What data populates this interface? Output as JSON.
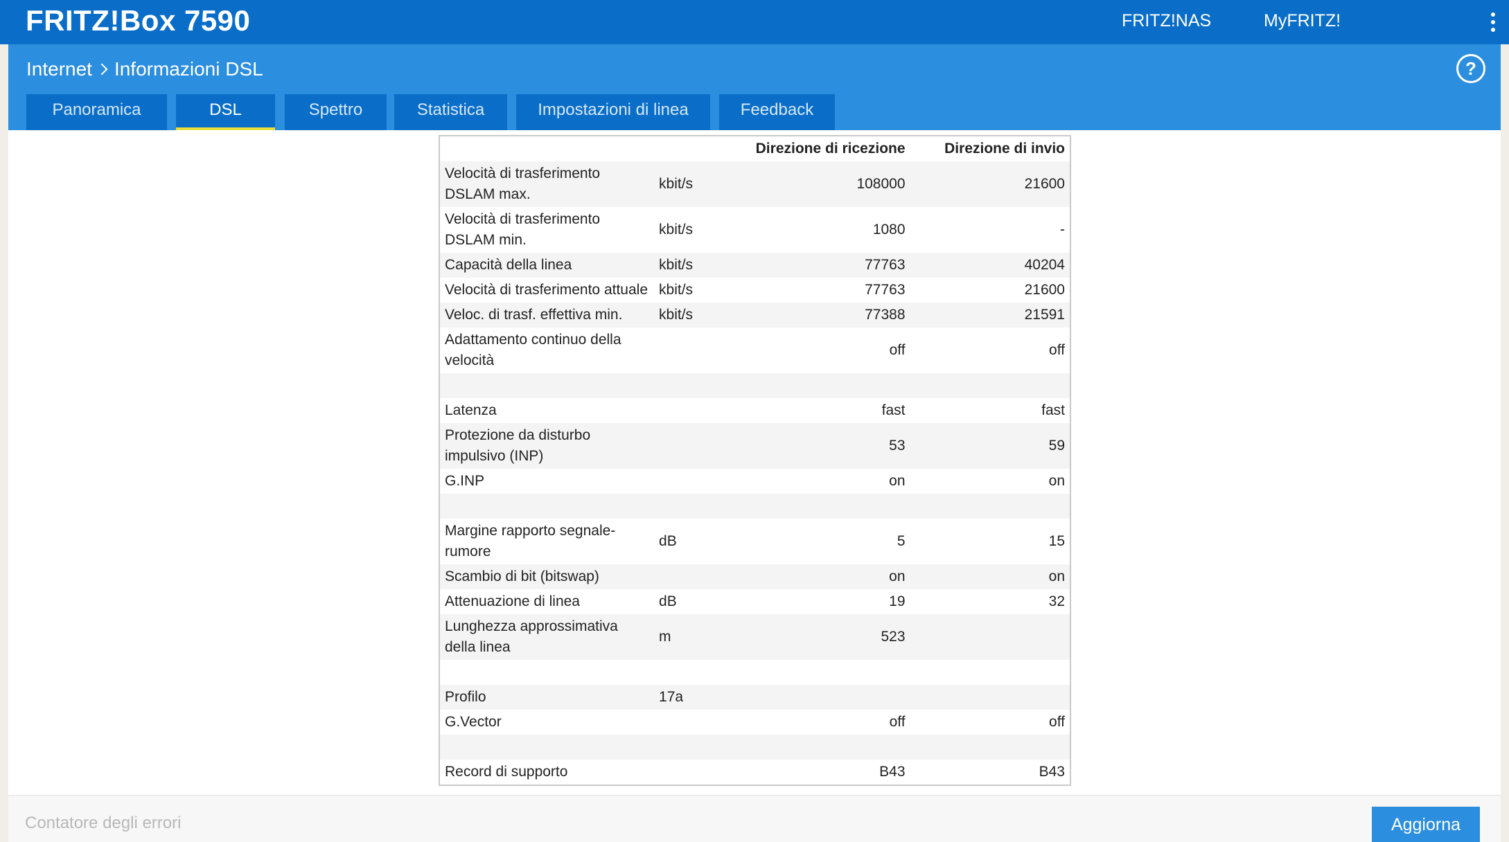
{
  "header": {
    "brand": "FRITZ!Box 7590",
    "links": [
      "FRITZ!NAS",
      "MyFRITZ!"
    ],
    "menu_icon": "vertical-dots-icon"
  },
  "breadcrumb": {
    "parent": "Internet",
    "current": "Informazioni DSL",
    "help_icon": "help-icon",
    "help_symbol": "?"
  },
  "tabs": [
    {
      "label": "Panoramica",
      "active": false
    },
    {
      "label": "DSL",
      "active": true
    },
    {
      "label": "Spettro",
      "active": false
    },
    {
      "label": "Statistica",
      "active": false
    },
    {
      "label": "Impostazioni di linea",
      "active": false
    },
    {
      "label": "Feedback",
      "active": false
    }
  ],
  "table": {
    "headers": {
      "rx": "Direzione di ricezione",
      "tx": "Direzione di invio"
    },
    "rows": [
      {
        "label": "Velocità di trasferimento DSLAM max.",
        "unit": "kbit/s",
        "rx": "108000",
        "tx": "21600"
      },
      {
        "label": "Velocità di trasferimento DSLAM min.",
        "unit": "kbit/s",
        "rx": "1080",
        "tx": "-"
      },
      {
        "label": "Capacità della linea",
        "unit": "kbit/s",
        "rx": "77763",
        "tx": "40204"
      },
      {
        "label": "Velocità di trasferimento attuale",
        "unit": "kbit/s",
        "rx": "77763",
        "tx": "21600"
      },
      {
        "label": "Veloc. di trasf. effettiva min.",
        "unit": "kbit/s",
        "rx": "77388",
        "tx": "21591"
      },
      {
        "label": "Adattamento continuo della velocità",
        "unit": "",
        "rx": "off",
        "tx": "off"
      },
      {
        "label": "",
        "unit": "",
        "rx": "",
        "tx": ""
      },
      {
        "label": "Latenza",
        "unit": "",
        "rx": "fast",
        "tx": "fast"
      },
      {
        "label": "Protezione da disturbo impulsivo (INP)",
        "unit": "",
        "rx": "53",
        "tx": "59"
      },
      {
        "label": "G.INP",
        "unit": "",
        "rx": "on",
        "tx": "on"
      },
      {
        "label": "",
        "unit": "",
        "rx": "",
        "tx": ""
      },
      {
        "label": "Margine rapporto segnale-rumore",
        "unit": "dB",
        "rx": "5",
        "tx": "15"
      },
      {
        "label": "Scambio di bit (bitswap)",
        "unit": "",
        "rx": "on",
        "tx": "on"
      },
      {
        "label": "Attenuazione di linea",
        "unit": "dB",
        "rx": "19",
        "tx": "32"
      },
      {
        "label": "Lunghezza approssimativa della linea",
        "unit": "m",
        "rx": "523",
        "tx": ""
      },
      {
        "label": "",
        "unit": "",
        "rx": "",
        "tx": ""
      },
      {
        "label": "Profilo",
        "unit": "17a",
        "rx": "",
        "tx": ""
      },
      {
        "label": "G.Vector",
        "unit": "",
        "rx": "off",
        "tx": "off"
      },
      {
        "label": "",
        "unit": "",
        "rx": "",
        "tx": ""
      },
      {
        "label": "Record di supporto",
        "unit": "",
        "rx": "B43",
        "tx": "B43"
      }
    ]
  },
  "footer": {
    "error_counter_label": "Contatore degli errori",
    "refresh_button": "Aggiorna"
  }
}
